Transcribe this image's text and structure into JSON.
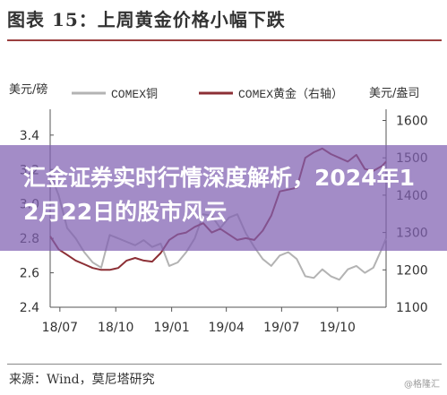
{
  "figure_title": "图表 15：上周黄金价格小幅下跌",
  "source": "来源：Wind，莫尼塔研究",
  "watermark": "@格隆汇",
  "overlay_text": "汇金证券实时行情深度解析，2024年12月22日的股市风云",
  "colors": {
    "copper": "#b3b3b3",
    "gold": "#8c2f35",
    "overlay": "#7f60b2",
    "rule": "#9b3f3f"
  },
  "chart_data": {
    "type": "line",
    "x_ticks": [
      "18/07",
      "18/10",
      "19/01",
      "19/04",
      "19/07",
      "19/10"
    ],
    "x_range": [
      "2018-06-15",
      "2019-12-20"
    ],
    "left_axis": {
      "label": "美元/磅",
      "ticks": [
        2.4,
        2.6,
        2.8,
        3.0,
        3.2,
        3.4
      ],
      "range": [
        2.4,
        3.55
      ]
    },
    "right_axis": {
      "label": "美元/盎司",
      "ticks": [
        1100,
        1200,
        1300,
        1400,
        1500,
        1600
      ],
      "range": [
        1100,
        1630
      ]
    },
    "grid": false,
    "legend_position": "top",
    "series": [
      {
        "name": "COMEX铜",
        "axis": "left",
        "x": [
          "2018-06-15",
          "2018-06-29",
          "2018-07-13",
          "2018-07-27",
          "2018-08-10",
          "2018-08-24",
          "2018-09-07",
          "2018-09-21",
          "2018-10-05",
          "2018-10-19",
          "2018-11-02",
          "2018-11-16",
          "2018-11-30",
          "2018-12-14",
          "2018-12-28",
          "2019-01-11",
          "2019-01-25",
          "2019-02-08",
          "2019-02-22",
          "2019-03-08",
          "2019-03-22",
          "2019-04-05",
          "2019-04-19",
          "2019-05-03",
          "2019-05-17",
          "2019-05-31",
          "2019-06-14",
          "2019-06-28",
          "2019-07-12",
          "2019-07-26",
          "2019-08-09",
          "2019-08-23",
          "2019-09-06",
          "2019-09-20",
          "2019-10-04",
          "2019-10-18",
          "2019-11-01",
          "2019-11-15",
          "2019-11-29",
          "2019-12-13",
          "2019-12-20"
        ],
        "values": [
          3.18,
          3.05,
          2.86,
          2.8,
          2.72,
          2.66,
          2.63,
          2.82,
          2.8,
          2.78,
          2.76,
          2.79,
          2.75,
          2.77,
          2.64,
          2.66,
          2.72,
          2.8,
          2.94,
          2.93,
          2.86,
          2.92,
          2.94,
          2.83,
          2.75,
          2.68,
          2.64,
          2.7,
          2.72,
          2.68,
          2.58,
          2.57,
          2.62,
          2.58,
          2.56,
          2.62,
          2.64,
          2.6,
          2.63,
          2.74,
          2.8
        ]
      },
      {
        "name": "COMEX黄金（右轴）",
        "axis": "right",
        "x": [
          "2018-06-15",
          "2018-06-29",
          "2018-07-13",
          "2018-07-27",
          "2018-08-10",
          "2018-08-24",
          "2018-09-07",
          "2018-09-21",
          "2018-10-05",
          "2018-10-19",
          "2018-11-02",
          "2018-11-16",
          "2018-11-30",
          "2018-12-14",
          "2018-12-28",
          "2019-01-11",
          "2019-01-25",
          "2019-02-08",
          "2019-02-22",
          "2019-03-08",
          "2019-03-22",
          "2019-04-05",
          "2019-04-19",
          "2019-05-03",
          "2019-05-17",
          "2019-05-31",
          "2019-06-14",
          "2019-06-28",
          "2019-07-12",
          "2019-07-26",
          "2019-08-09",
          "2019-08-23",
          "2019-09-06",
          "2019-09-20",
          "2019-10-04",
          "2019-10-18",
          "2019-11-01",
          "2019-11-15",
          "2019-11-29",
          "2019-12-13",
          "2019-12-20"
        ],
        "values": [
          1290,
          1255,
          1240,
          1225,
          1215,
          1205,
          1200,
          1200,
          1205,
          1225,
          1232,
          1225,
          1222,
          1245,
          1280,
          1295,
          1300,
          1315,
          1325,
          1300,
          1310,
          1295,
          1280,
          1285,
          1280,
          1305,
          1345,
          1410,
          1415,
          1420,
          1500,
          1515,
          1525,
          1510,
          1500,
          1490,
          1508,
          1470,
          1465,
          1478,
          1490
        ]
      }
    ]
  }
}
